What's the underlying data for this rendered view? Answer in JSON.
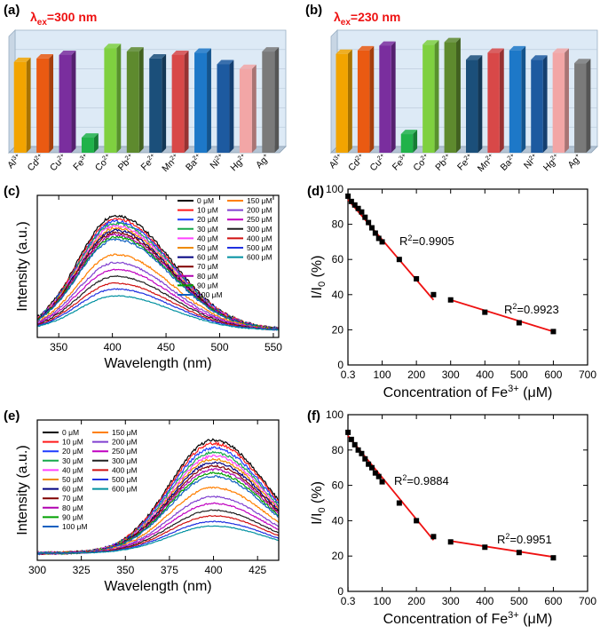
{
  "panels": {
    "a": {
      "label": "(a)",
      "lambda_prefix": "λ",
      "lambda_sub": "ex",
      "lambda_value": "=300 nm"
    },
    "b": {
      "label": "(b)",
      "lambda_prefix": "λ",
      "lambda_sub": "ex",
      "lambda_value": "=230 nm"
    },
    "c": {
      "label": "(c)"
    },
    "d": {
      "label": "(d)"
    },
    "e": {
      "label": "(e)"
    },
    "f": {
      "label": "(f)"
    }
  },
  "colors": {
    "bars": [
      "#f2a400",
      "#ea5a12",
      "#7a2e9e",
      "#20b24a",
      "#7fd040",
      "#5e8a2e",
      "#1b4f7a",
      "#d84848",
      "#1d78c8",
      "#1d5aa0",
      "#f2a6a6",
      "#7a7a7a"
    ],
    "fit": "#ee1111",
    "curves": [
      "#000000",
      "#ff1a1a",
      "#1f3cff",
      "#16a84a",
      "#ff40ff",
      "#ee8a00",
      "#000080",
      "#800000",
      "#b000b0",
      "#00a000",
      "#1060c0",
      "#ff7f00",
      "#8040d0",
      "#c000c0",
      "#202020",
      "#d01010",
      "#2030e0",
      "#0090a0"
    ]
  },
  "chart_data": [
    {
      "id": "a",
      "type": "bar",
      "annotation": "λex=300 nm",
      "categories": [
        "Al",
        "Cd",
        "Cu",
        "Fe",
        "Co",
        "Pb",
        "Fe",
        "Mn",
        "Ba",
        "Ni",
        "Hg",
        "Ag"
      ],
      "superscripts": [
        "3+",
        "2+",
        "2+",
        "3+",
        "2+",
        "2+",
        "2+",
        "2+",
        "2+",
        "2+",
        "2+",
        "+"
      ],
      "values": [
        0.78,
        0.81,
        0.84,
        0.13,
        0.9,
        0.87,
        0.81,
        0.84,
        0.86,
        0.76,
        0.72,
        0.87
      ],
      "ylim": [
        0,
        1
      ]
    },
    {
      "id": "b",
      "type": "bar",
      "annotation": "λex=230 nm",
      "categories": [
        "Al",
        "Cd",
        "Cu",
        "Fe",
        "Co",
        "Pb",
        "Fe",
        "Mn",
        "Ba",
        "Ni",
        "Hg",
        "Ag"
      ],
      "superscripts": [
        "3+",
        "2+",
        "2+",
        "3+",
        "2+",
        "2+",
        "2+",
        "2+",
        "2+",
        "2+",
        "2+",
        "+"
      ],
      "values": [
        0.85,
        0.88,
        0.92,
        0.16,
        0.93,
        0.95,
        0.8,
        0.86,
        0.88,
        0.8,
        0.86,
        0.77
      ],
      "ylim": [
        0,
        1
      ]
    },
    {
      "id": "c",
      "type": "line",
      "xlabel": "Wavelength (nm)",
      "ylabel": "Intensity (a.u.)",
      "xlim": [
        330,
        555
      ],
      "xticks": [
        350,
        400,
        450,
        500,
        550
      ],
      "peak": 403,
      "width_left": 35,
      "width_right": 52,
      "series": [
        {
          "name": "0 μM",
          "peak": 1.0
        },
        {
          "name": "10 μM",
          "peak": 0.97
        },
        {
          "name": "20 μM",
          "peak": 0.95
        },
        {
          "name": "30 μM",
          "peak": 0.93
        },
        {
          "name": "40 μM",
          "peak": 0.91
        },
        {
          "name": "50 μM",
          "peak": 0.89
        },
        {
          "name": "60 μM",
          "peak": 0.87
        },
        {
          "name": "70 μM",
          "peak": 0.85
        },
        {
          "name": "80 μM",
          "peak": 0.83
        },
        {
          "name": "90 μM",
          "peak": 0.81
        },
        {
          "name": "100 μM",
          "peak": 0.79
        },
        {
          "name": "150 μM",
          "peak": 0.66
        },
        {
          "name": "200 μM",
          "peak": 0.59
        },
        {
          "name": "250 μM",
          "peak": 0.53
        },
        {
          "name": "300 μM",
          "peak": 0.47
        },
        {
          "name": "400 μM",
          "peak": 0.41
        },
        {
          "name": "500 μM",
          "peak": 0.36
        },
        {
          "name": "600 μM",
          "peak": 0.3
        }
      ]
    },
    {
      "id": "d",
      "type": "scatter",
      "xlabel_main": "Concentration of Fe",
      "xlabel_sup": "3+",
      "xlabel_unit": " (μM)",
      "ylabel": "I/I",
      "ylabel_sub": "0",
      "ylabel_unit": " (%)",
      "xlim": [
        0,
        700
      ],
      "ylim": [
        0,
        100
      ],
      "xticks": [
        0.3,
        100,
        200,
        300,
        400,
        500,
        600,
        700
      ],
      "xtick_labels": [
        "0.3",
        "100",
        "200",
        "300",
        "400",
        "500",
        "600",
        "700"
      ],
      "yticks": [
        0,
        20,
        40,
        60,
        80,
        100
      ],
      "points": [
        [
          0.3,
          96
        ],
        [
          10,
          93
        ],
        [
          20,
          91
        ],
        [
          30,
          89
        ],
        [
          40,
          87
        ],
        [
          50,
          84
        ],
        [
          60,
          81
        ],
        [
          70,
          78
        ],
        [
          80,
          75
        ],
        [
          90,
          72
        ],
        [
          100,
          70
        ],
        [
          150,
          60
        ],
        [
          200,
          49
        ],
        [
          250,
          40
        ],
        [
          300,
          37
        ],
        [
          400,
          30
        ],
        [
          500,
          24
        ],
        [
          600,
          19
        ]
      ],
      "fits": [
        {
          "x": [
            0.3,
            250
          ],
          "y": [
            94,
            37
          ],
          "label": "R",
          "sup": "2",
          "text": "=0.9905"
        },
        {
          "x": [
            300,
            600
          ],
          "y": [
            37,
            19
          ],
          "label": "R",
          "sup": "2",
          "text": "=0.9923"
        }
      ]
    },
    {
      "id": "e",
      "type": "line",
      "xlabel": "Wavelength (nm)",
      "ylabel": "Intensity (a.u.)",
      "xlim": [
        300,
        437
      ],
      "xticks": [
        300,
        325,
        350,
        375,
        400,
        425
      ],
      "peak": 400,
      "width_left": 25,
      "width_right": 30,
      "series": [
        {
          "name": "0 μM",
          "peak": 1.0
        },
        {
          "name": "10 μM",
          "peak": 0.97
        },
        {
          "name": "20 μM",
          "peak": 0.93
        },
        {
          "name": "30 μM",
          "peak": 0.89
        },
        {
          "name": "40 μM",
          "peak": 0.86
        },
        {
          "name": "50 μM",
          "peak": 0.83
        },
        {
          "name": "60 μM",
          "peak": 0.8
        },
        {
          "name": "70 μM",
          "peak": 0.77
        },
        {
          "name": "80 μM",
          "peak": 0.74
        },
        {
          "name": "90 μM",
          "peak": 0.71
        },
        {
          "name": "100 μM",
          "peak": 0.68
        },
        {
          "name": "150 μM",
          "peak": 0.58
        },
        {
          "name": "200 μM",
          "peak": 0.5
        },
        {
          "name": "250 μM",
          "peak": 0.44
        },
        {
          "name": "300 μM",
          "peak": 0.38
        },
        {
          "name": "400 μM",
          "peak": 0.33
        },
        {
          "name": "500 μM",
          "peak": 0.28
        },
        {
          "name": "600 μM",
          "peak": 0.24
        }
      ]
    },
    {
      "id": "f",
      "type": "scatter",
      "xlabel_main": "Concentration of Fe",
      "xlabel_sup": "3+",
      "xlabel_unit": " (μM)",
      "ylabel": "I/I",
      "ylabel_sub": "0",
      "ylabel_unit": " (%)",
      "xlim": [
        0,
        700
      ],
      "ylim": [
        0,
        100
      ],
      "xticks": [
        0.3,
        100,
        200,
        300,
        400,
        500,
        600,
        700
      ],
      "xtick_labels": [
        "0.3",
        "100",
        "200",
        "300",
        "400",
        "500",
        "600",
        "700"
      ],
      "yticks": [
        0,
        20,
        40,
        60,
        80,
        100
      ],
      "points": [
        [
          0.3,
          90
        ],
        [
          10,
          86
        ],
        [
          20,
          83
        ],
        [
          30,
          80
        ],
        [
          40,
          78
        ],
        [
          50,
          75
        ],
        [
          60,
          72
        ],
        [
          70,
          70
        ],
        [
          80,
          67
        ],
        [
          90,
          65
        ],
        [
          100,
          62
        ],
        [
          150,
          50
        ],
        [
          200,
          40
        ],
        [
          250,
          31
        ],
        [
          300,
          28
        ],
        [
          400,
          25
        ],
        [
          500,
          22
        ],
        [
          600,
          19
        ]
      ],
      "fits": [
        {
          "x": [
            0.3,
            250
          ],
          "y": [
            88,
            29
          ],
          "label": "R",
          "sup": "2",
          "text": "=0.9884"
        },
        {
          "x": [
            300,
            600
          ],
          "y": [
            28.5,
            19.5
          ],
          "label": "R",
          "sup": "2",
          "text": "=0.9951"
        }
      ]
    }
  ]
}
